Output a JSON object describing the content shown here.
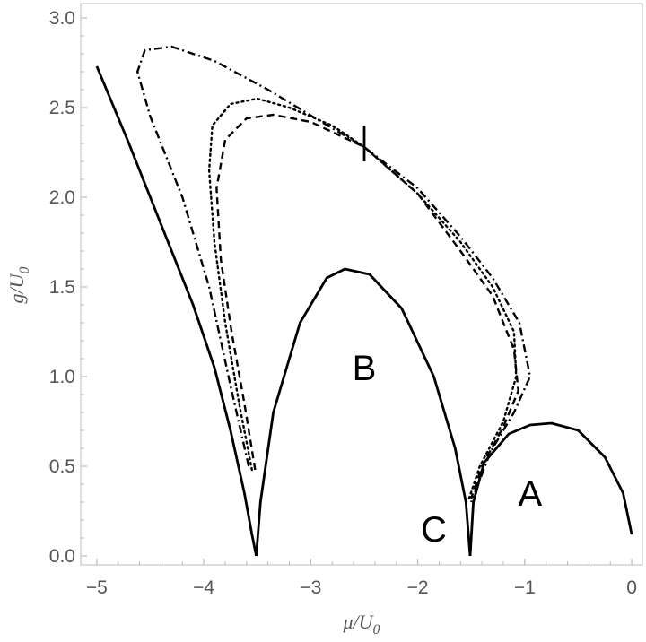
{
  "chart_data": {
    "type": "line",
    "xlabel": {
      "main": "μ/U",
      "sub": "0"
    },
    "ylabel": {
      "main": "g/U",
      "sub": "0"
    },
    "xlim": [
      -5.15,
      0.1
    ],
    "ylim": [
      -0.05,
      3.08
    ],
    "x_ticks": [
      {
        "value": -5,
        "label": "−5"
      },
      {
        "value": -4,
        "label": "−4"
      },
      {
        "value": -3,
        "label": "−3"
      },
      {
        "value": -2,
        "label": "−2"
      },
      {
        "value": -1,
        "label": "−1"
      },
      {
        "value": 0,
        "label": "0"
      }
    ],
    "y_ticks": [
      {
        "value": 0.0,
        "label": "0.0"
      },
      {
        "value": 0.5,
        "label": "0.5"
      },
      {
        "value": 1.0,
        "label": "1.0"
      },
      {
        "value": 1.5,
        "label": "1.5"
      },
      {
        "value": 2.0,
        "label": "2.0"
      },
      {
        "value": 2.5,
        "label": "2.5"
      },
      {
        "value": 3.0,
        "label": "3.0"
      }
    ],
    "region_labels": [
      {
        "text": "B",
        "x": -2.5,
        "y": 1.05
      },
      {
        "text": "A",
        "x": -0.95,
        "y": 0.35
      },
      {
        "text": "C",
        "x": -1.85,
        "y": 0.15
      }
    ],
    "series": [
      {
        "style": "solid",
        "points": [
          [
            -5.0,
            2.73
          ],
          [
            -4.7,
            2.3
          ],
          [
            -4.4,
            1.85
          ],
          [
            -4.1,
            1.4
          ],
          [
            -3.9,
            1.05
          ],
          [
            -3.75,
            0.7
          ],
          [
            -3.62,
            0.35
          ],
          [
            -3.55,
            0.12
          ],
          [
            -3.51,
            0.0
          ]
        ]
      },
      {
        "style": "solid",
        "points": [
          [
            -3.51,
            0.0
          ],
          [
            -3.47,
            0.3
          ],
          [
            -3.35,
            0.8
          ],
          [
            -3.1,
            1.3
          ],
          [
            -2.85,
            1.55
          ],
          [
            -2.68,
            1.6
          ],
          [
            -2.45,
            1.57
          ],
          [
            -2.15,
            1.38
          ],
          [
            -1.85,
            1.0
          ],
          [
            -1.65,
            0.6
          ],
          [
            -1.55,
            0.3
          ],
          [
            -1.51,
            0.0
          ]
        ]
      },
      {
        "style": "solid",
        "points": [
          [
            -1.51,
            0.0
          ],
          [
            -1.48,
            0.3
          ],
          [
            -1.38,
            0.52
          ],
          [
            -1.15,
            0.68
          ],
          [
            -0.95,
            0.73
          ],
          [
            -0.75,
            0.74
          ],
          [
            -0.5,
            0.7
          ],
          [
            -0.25,
            0.55
          ],
          [
            -0.08,
            0.35
          ],
          [
            0.0,
            0.12
          ]
        ]
      },
      {
        "style": "solid",
        "points": [
          [
            -2.5,
            2.2
          ],
          [
            -2.5,
            2.4
          ]
        ]
      },
      {
        "style": "dashed",
        "points": [
          [
            -3.52,
            0.48
          ],
          [
            -3.62,
            0.85
          ],
          [
            -3.74,
            1.25
          ],
          [
            -3.84,
            1.65
          ],
          [
            -3.88,
            2.05
          ],
          [
            -3.8,
            2.32
          ],
          [
            -3.6,
            2.44
          ],
          [
            -3.35,
            2.46
          ],
          [
            -3.0,
            2.42
          ],
          [
            -2.5,
            2.28
          ],
          [
            -2.0,
            2.02
          ],
          [
            -1.6,
            1.7
          ],
          [
            -1.3,
            1.45
          ],
          [
            -1.1,
            1.15
          ],
          [
            -1.06,
            0.92
          ],
          [
            -1.2,
            0.72
          ],
          [
            -1.4,
            0.5
          ],
          [
            -1.5,
            0.32
          ]
        ]
      },
      {
        "style": "dotted",
        "points": [
          [
            -3.55,
            0.48
          ],
          [
            -3.67,
            0.85
          ],
          [
            -3.8,
            1.3
          ],
          [
            -3.9,
            1.75
          ],
          [
            -3.95,
            2.15
          ],
          [
            -3.92,
            2.4
          ],
          [
            -3.75,
            2.52
          ],
          [
            -3.5,
            2.55
          ],
          [
            -3.2,
            2.5
          ],
          [
            -2.8,
            2.4
          ],
          [
            -2.5,
            2.28
          ],
          [
            -2.0,
            2.02
          ],
          [
            -1.6,
            1.75
          ],
          [
            -1.3,
            1.5
          ],
          [
            -1.1,
            1.25
          ],
          [
            -1.08,
            1.0
          ],
          [
            -1.2,
            0.75
          ],
          [
            -1.42,
            0.5
          ],
          [
            -1.52,
            0.32
          ]
        ]
      },
      {
        "style": "dashdot",
        "points": [
          [
            -3.58,
            0.5
          ],
          [
            -3.75,
            0.95
          ],
          [
            -3.95,
            1.5
          ],
          [
            -4.2,
            2.0
          ],
          [
            -4.5,
            2.45
          ],
          [
            -4.62,
            2.7
          ],
          [
            -4.55,
            2.82
          ],
          [
            -4.3,
            2.84
          ],
          [
            -3.9,
            2.76
          ],
          [
            -3.4,
            2.6
          ],
          [
            -2.9,
            2.42
          ],
          [
            -2.5,
            2.28
          ],
          [
            -2.0,
            2.05
          ],
          [
            -1.6,
            1.78
          ],
          [
            -1.3,
            1.55
          ],
          [
            -1.05,
            1.3
          ],
          [
            -0.95,
            1.0
          ],
          [
            -1.1,
            0.8
          ],
          [
            -1.32,
            0.58
          ],
          [
            -1.5,
            0.3
          ]
        ]
      }
    ]
  }
}
